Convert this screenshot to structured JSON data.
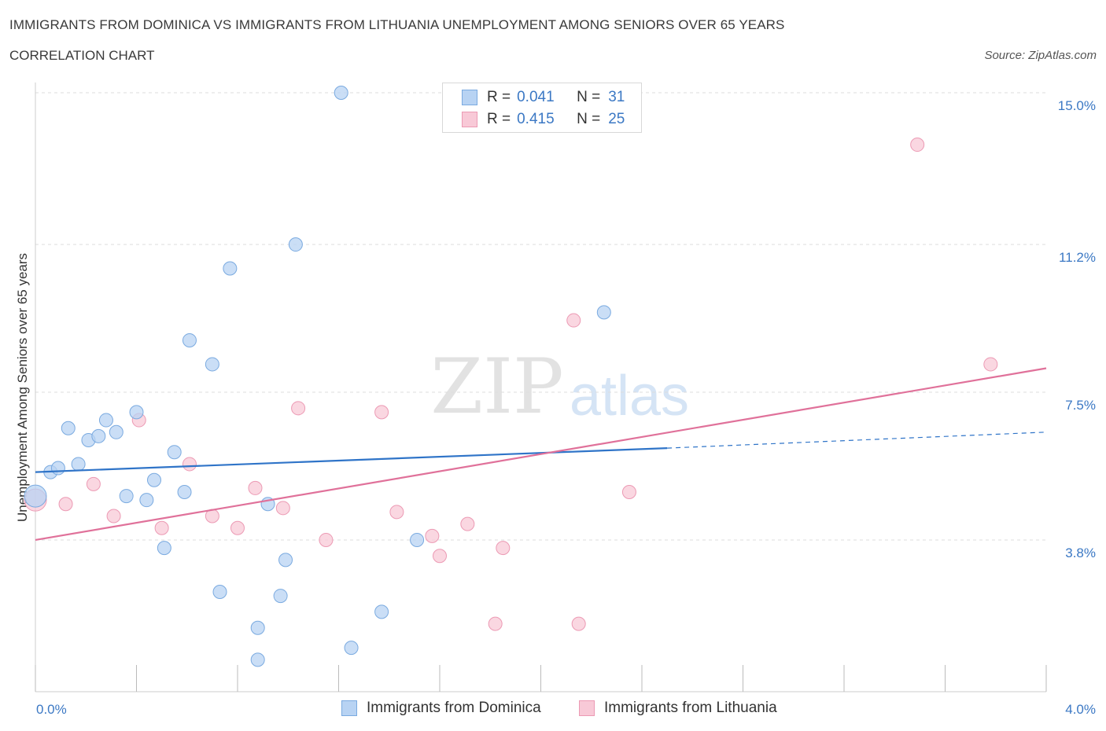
{
  "header": {
    "title": "IMMIGRANTS FROM DOMINICA VS IMMIGRANTS FROM LITHUANIA UNEMPLOYMENT AMONG SENIORS OVER 65 YEARS",
    "subtitle": "CORRELATION CHART",
    "source": "Source: ZipAtlas.com"
  },
  "legend": {
    "rows": [
      {
        "r_label": "R =",
        "r_value": "0.041",
        "n_label": "N =",
        "n_value": "31"
      },
      {
        "r_label": "R =",
        "r_value": "0.415",
        "n_label": "N =",
        "n_value": "25"
      }
    ]
  },
  "watermark": {
    "zip": "ZIP",
    "atlas": "atlas"
  },
  "colors": {
    "dominica_fill": "#b8d3f3",
    "dominica_stroke": "#7aaae0",
    "dominica_line": "#2f74c8",
    "lithuania_fill": "#f8c9d7",
    "lithuania_stroke": "#ec9ab4",
    "lithuania_line": "#e0719a",
    "tick_text": "#3b78c4",
    "grid": "#dddddd"
  },
  "chart_data": {
    "type": "scatter",
    "title": "IMMIGRANTS FROM DOMINICA VS IMMIGRANTS FROM LITHUANIA UNEMPLOYMENT AMONG SENIORS OVER 65 YEARS",
    "subtitle": "CORRELATION CHART",
    "xlabel": "",
    "ylabel": "Unemployment Among Seniors over 65 years",
    "xlim": [
      0,
      4.0
    ],
    "ylim": [
      0,
      15.0
    ],
    "x_tick_labels": [
      "0.0%",
      "4.0%"
    ],
    "y_ticks": [
      3.8,
      7.5,
      11.2,
      15.0
    ],
    "y_tick_labels": [
      "3.8%",
      "7.5%",
      "11.2%",
      "15.0%"
    ],
    "grid": "horizontal dashed",
    "legend_position": "top-center",
    "series": [
      {
        "name": "Immigrants from Dominica",
        "r": 0.041,
        "n": 31,
        "trend": {
          "x": [
            0.0,
            2.5
          ],
          "y": [
            5.5,
            6.1
          ],
          "dashed_to": [
            4.0,
            6.5
          ]
        },
        "points": [
          {
            "x": 0.0,
            "y": 4.9,
            "big": true
          },
          {
            "x": 0.06,
            "y": 5.5
          },
          {
            "x": 0.09,
            "y": 5.6
          },
          {
            "x": 0.13,
            "y": 6.6
          },
          {
            "x": 0.17,
            "y": 5.7
          },
          {
            "x": 0.21,
            "y": 6.3
          },
          {
            "x": 0.25,
            "y": 6.4
          },
          {
            "x": 0.28,
            "y": 6.8
          },
          {
            "x": 0.32,
            "y": 6.5
          },
          {
            "x": 0.36,
            "y": 4.9
          },
          {
            "x": 0.4,
            "y": 7.0
          },
          {
            "x": 0.44,
            "y": 4.8
          },
          {
            "x": 0.47,
            "y": 5.3
          },
          {
            "x": 0.51,
            "y": 3.6
          },
          {
            "x": 0.55,
            "y": 6.0
          },
          {
            "x": 0.59,
            "y": 5.0
          },
          {
            "x": 0.61,
            "y": 8.8
          },
          {
            "x": 0.7,
            "y": 8.2
          },
          {
            "x": 0.73,
            "y": 2.5
          },
          {
            "x": 0.77,
            "y": 10.6
          },
          {
            "x": 0.88,
            "y": 0.8
          },
          {
            "x": 0.88,
            "y": 1.6
          },
          {
            "x": 0.92,
            "y": 4.7
          },
          {
            "x": 0.97,
            "y": 2.4
          },
          {
            "x": 0.99,
            "y": 3.3
          },
          {
            "x": 1.03,
            "y": 11.2
          },
          {
            "x": 1.21,
            "y": 15.0
          },
          {
            "x": 1.25,
            "y": 1.1
          },
          {
            "x": 1.37,
            "y": 2.0
          },
          {
            "x": 1.51,
            "y": 3.8
          },
          {
            "x": 2.25,
            "y": 9.5
          }
        ]
      },
      {
        "name": "Immigrants from Lithuania",
        "r": 0.415,
        "n": 25,
        "trend": {
          "x": [
            0.0,
            4.0
          ],
          "y": [
            3.8,
            8.1
          ]
        },
        "points": [
          {
            "x": 0.0,
            "y": 4.8,
            "big": true
          },
          {
            "x": 0.12,
            "y": 4.7
          },
          {
            "x": 0.23,
            "y": 5.2
          },
          {
            "x": 0.31,
            "y": 4.4
          },
          {
            "x": 0.41,
            "y": 6.8
          },
          {
            "x": 0.5,
            "y": 4.1
          },
          {
            "x": 0.61,
            "y": 5.7
          },
          {
            "x": 0.7,
            "y": 4.4
          },
          {
            "x": 0.8,
            "y": 4.1
          },
          {
            "x": 0.87,
            "y": 5.1
          },
          {
            "x": 0.98,
            "y": 4.6
          },
          {
            "x": 1.04,
            "y": 7.1
          },
          {
            "x": 1.15,
            "y": 3.8
          },
          {
            "x": 1.37,
            "y": 7.0
          },
          {
            "x": 1.43,
            "y": 4.5
          },
          {
            "x": 1.57,
            "y": 3.9
          },
          {
            "x": 1.6,
            "y": 3.4
          },
          {
            "x": 1.71,
            "y": 4.2
          },
          {
            "x": 1.82,
            "y": 1.7
          },
          {
            "x": 1.85,
            "y": 3.6
          },
          {
            "x": 2.13,
            "y": 9.3
          },
          {
            "x": 2.15,
            "y": 1.7
          },
          {
            "x": 2.35,
            "y": 5.0
          },
          {
            "x": 3.49,
            "y": 13.7
          },
          {
            "x": 3.78,
            "y": 8.2
          }
        ]
      }
    ]
  }
}
